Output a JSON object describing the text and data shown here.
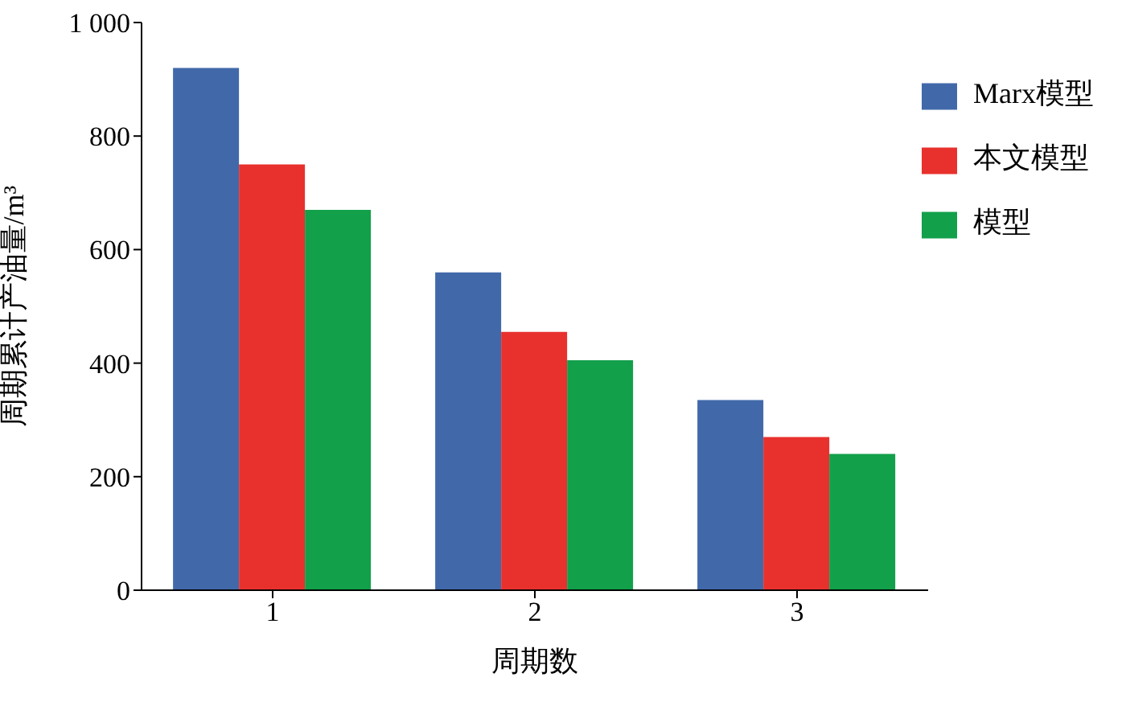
{
  "chart_data": {
    "type": "bar",
    "xlabel": "周期数",
    "ylabel": "周期累计产油量/m³",
    "categories": [
      "1",
      "2",
      "3"
    ],
    "series": [
      {
        "name": "Marx模型",
        "color": "#4169aa",
        "values": [
          920,
          560,
          335
        ]
      },
      {
        "name": "本文模型",
        "color": "#e8312d",
        "values": [
          750,
          455,
          270
        ]
      },
      {
        "name": "模型",
        "color": "#12a04a",
        "values": [
          670,
          405,
          240
        ]
      }
    ],
    "ylim": [
      0,
      1000
    ],
    "yticks": [
      0,
      200,
      400,
      600,
      800,
      {
        "value": 1000,
        "label": "1 000"
      }
    ],
    "grid": false,
    "legend": "top right"
  }
}
